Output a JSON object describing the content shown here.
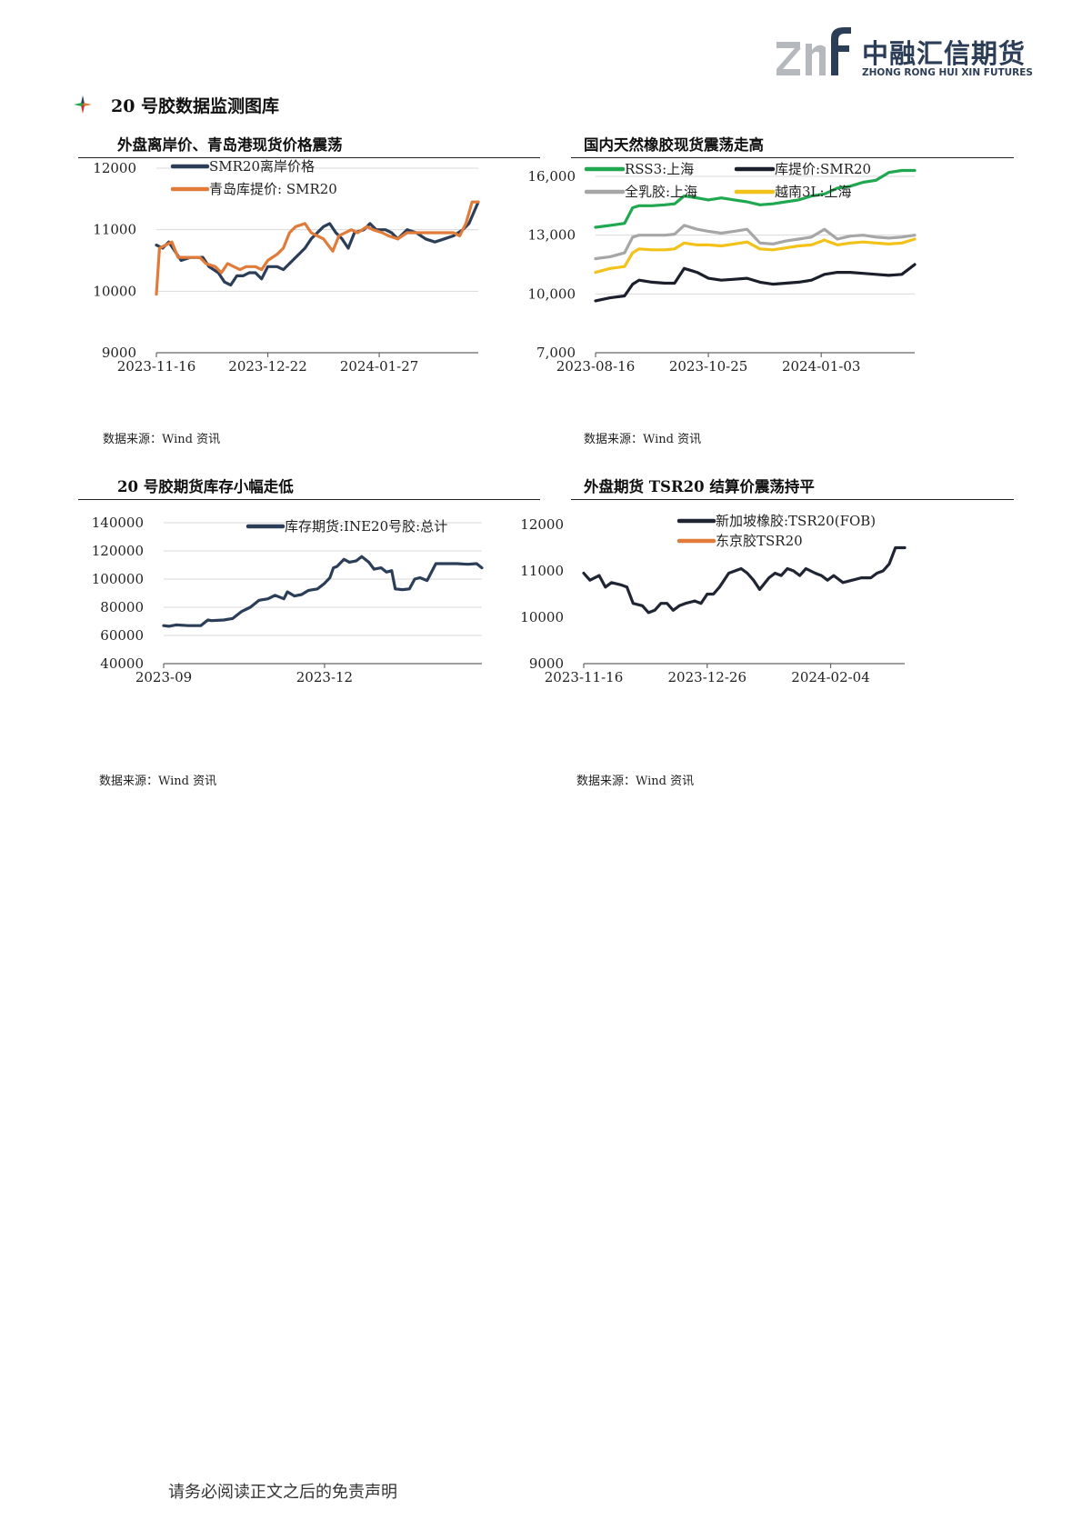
{
  "header": {
    "logo_cn": "中融汇信期货",
    "logo_en": "ZHONG RONG HUI XIN FUTURES",
    "logo_mark": "znf-logo-mark",
    "brand_color": "#2c3e57"
  },
  "section": {
    "title": "20 号胶数据监测图库",
    "bullet_icon": "compass-star-icon"
  },
  "charts": [
    {
      "title": "外盘离岸价、青岛港现货价格震荡",
      "source": "数据来源：Wind 资讯"
    },
    {
      "title": "国内天然橡胶现货震荡走高",
      "source": "数据来源：Wind 资讯"
    },
    {
      "title": "20 号胶期货库存小幅走低",
      "source": "数据来源：Wind 资讯"
    },
    {
      "title": "外盘期货 TSR20 结算价震荡持平",
      "source": "数据来源：Wind 资讯"
    }
  ],
  "footer": {
    "text": "请务必阅读正文之后的免责声明"
  },
  "chart_data": [
    {
      "type": "line",
      "ylim": [
        9000,
        12000
      ],
      "yticks": [
        "12000",
        "11000",
        "10000",
        "9000"
      ],
      "xticks": [
        "2023-11-16",
        "2023-12-22",
        "2024-01-27"
      ],
      "xrange": [
        "2023-11-16",
        "2024-02-28"
      ],
      "grid": true,
      "legend": "top-left",
      "series": [
        {
          "name": "SMR20离岸价格",
          "color": "#2c3e57",
          "x": [
            "2023-11-16",
            "2023-11-18",
            "2023-11-20",
            "2023-11-22",
            "2023-11-24",
            "2023-11-27",
            "2023-11-29",
            "2023-12-01",
            "2023-12-03",
            "2023-12-06",
            "2023-12-08",
            "2023-12-10",
            "2023-12-12",
            "2023-12-14",
            "2023-12-16",
            "2023-12-18",
            "2023-12-20",
            "2023-12-22",
            "2023-12-25",
            "2023-12-27",
            "2023-12-29",
            "2023-12-31",
            "2024-01-03",
            "2024-01-05",
            "2024-01-07",
            "2024-01-09",
            "2024-01-11",
            "2024-01-13",
            "2024-01-15",
            "2024-01-17",
            "2024-01-19",
            "2024-01-22",
            "2024-01-24",
            "2024-01-26",
            "2024-01-29",
            "2024-01-31",
            "2024-02-02",
            "2024-02-05",
            "2024-02-08",
            "2024-02-11",
            "2024-02-14",
            "2024-02-17",
            "2024-02-20",
            "2024-02-23",
            "2024-02-25",
            "2024-02-28"
          ],
          "y": [
            10750,
            10700,
            10800,
            10650,
            10500,
            10550,
            10550,
            10550,
            10400,
            10300,
            10150,
            10100,
            10250,
            10250,
            10300,
            10300,
            10200,
            10400,
            10400,
            10350,
            10450,
            10550,
            10700,
            10850,
            10950,
            11050,
            11100,
            10950,
            10850,
            10700,
            10950,
            11000,
            11100,
            11000,
            11000,
            10950,
            10850,
            11000,
            10950,
            10850,
            10800,
            10850,
            10900,
            11000,
            11100,
            11450
          ]
        },
        {
          "name": "青岛库提价: SMR20",
          "color": "#e07b39",
          "x": [
            "2023-11-16",
            "2023-11-17",
            "2023-11-19",
            "2023-11-21",
            "2023-11-23",
            "2023-11-25",
            "2023-11-28",
            "2023-11-30",
            "2023-12-02",
            "2023-12-05",
            "2023-12-07",
            "2023-12-09",
            "2023-12-11",
            "2023-12-13",
            "2023-12-15",
            "2023-12-18",
            "2023-12-20",
            "2023-12-22",
            "2023-12-25",
            "2023-12-27",
            "2023-12-29",
            "2023-12-31",
            "2024-01-03",
            "2024-01-05",
            "2024-01-07",
            "2024-01-09",
            "2024-01-12",
            "2024-01-14",
            "2024-01-16",
            "2024-01-18",
            "2024-01-20",
            "2024-01-23",
            "2024-01-25",
            "2024-01-28",
            "2024-01-30",
            "2024-02-02",
            "2024-02-05",
            "2024-02-08",
            "2024-02-11",
            "2024-02-14",
            "2024-02-17",
            "2024-02-20",
            "2024-02-22",
            "2024-02-24",
            "2024-02-26",
            "2024-02-28"
          ],
          "y": [
            9950,
            10700,
            10750,
            10800,
            10550,
            10550,
            10550,
            10550,
            10450,
            10400,
            10300,
            10450,
            10400,
            10350,
            10400,
            10400,
            10350,
            10500,
            10600,
            10700,
            10950,
            11050,
            11100,
            10950,
            10900,
            10850,
            10650,
            10900,
            10950,
            11000,
            10950,
            11050,
            11000,
            10950,
            10900,
            10850,
            10950,
            10950,
            10950,
            10950,
            10950,
            10950,
            10900,
            11100,
            11450,
            11450
          ]
        }
      ]
    },
    {
      "type": "line",
      "ylim": [
        7000,
        16000
      ],
      "yticks": [
        "16,000",
        "13,000",
        "10,000",
        "7,000"
      ],
      "xticks": [
        "2023-08-16",
        "2023-10-25",
        "2024-01-03"
      ],
      "xrange": [
        "2023-08-16",
        "2024-03-01"
      ],
      "grid": true,
      "legend": "top",
      "series": [
        {
          "name": "RSS3:上海",
          "color": "#1fa84f",
          "x": [
            "2023-08-16",
            "2023-08-25",
            "2023-09-03",
            "2023-09-08",
            "2023-09-12",
            "2023-09-20",
            "2023-09-28",
            "2023-10-04",
            "2023-10-10",
            "2023-10-18",
            "2023-10-25",
            "2023-11-02",
            "2023-11-10",
            "2023-11-18",
            "2023-11-26",
            "2023-12-04",
            "2023-12-12",
            "2023-12-20",
            "2023-12-28",
            "2024-01-05",
            "2024-01-13",
            "2024-01-21",
            "2024-01-29",
            "2024-02-06",
            "2024-02-14",
            "2024-02-22",
            "2024-03-01"
          ],
          "y": [
            13400,
            13500,
            13600,
            14400,
            14500,
            14500,
            14550,
            14600,
            15000,
            14900,
            14800,
            14900,
            14800,
            14700,
            14550,
            14600,
            14700,
            14800,
            15000,
            15100,
            15400,
            15500,
            15700,
            15800,
            16200,
            16300,
            16300
          ]
        },
        {
          "name": "库提价:SMR20",
          "color": "#1a1f2b",
          "x": [
            "2023-08-16",
            "2023-08-25",
            "2023-09-03",
            "2023-09-08",
            "2023-09-12",
            "2023-09-20",
            "2023-09-28",
            "2023-10-04",
            "2023-10-10",
            "2023-10-18",
            "2023-10-25",
            "2023-11-02",
            "2023-11-10",
            "2023-11-18",
            "2023-11-26",
            "2023-12-04",
            "2023-12-12",
            "2023-12-20",
            "2023-12-28",
            "2024-01-05",
            "2024-01-13",
            "2024-01-21",
            "2024-01-29",
            "2024-02-06",
            "2024-02-14",
            "2024-02-22",
            "2024-03-01"
          ],
          "y": [
            9650,
            9800,
            9900,
            10500,
            10700,
            10600,
            10550,
            10550,
            11300,
            11100,
            10800,
            10700,
            10750,
            10800,
            10600,
            10500,
            10550,
            10600,
            10700,
            11000,
            11100,
            11100,
            11050,
            11000,
            10950,
            11000,
            11500
          ]
        },
        {
          "name": "全乳胶:上海",
          "color": "#a6a6a6",
          "x": [
            "2023-08-16",
            "2023-08-25",
            "2023-09-03",
            "2023-09-08",
            "2023-09-12",
            "2023-09-20",
            "2023-09-28",
            "2023-10-04",
            "2023-10-10",
            "2023-10-18",
            "2023-10-25",
            "2023-11-02",
            "2023-11-10",
            "2023-11-18",
            "2023-11-26",
            "2023-12-04",
            "2023-12-12",
            "2023-12-20",
            "2023-12-28",
            "2024-01-05",
            "2024-01-13",
            "2024-01-21",
            "2024-01-29",
            "2024-02-06",
            "2024-02-14",
            "2024-02-22",
            "2024-03-01"
          ],
          "y": [
            11800,
            11900,
            12100,
            12900,
            13000,
            13000,
            13000,
            13050,
            13500,
            13300,
            13200,
            13100,
            13200,
            13300,
            12600,
            12550,
            12700,
            12800,
            12900,
            13300,
            12800,
            12950,
            13000,
            12900,
            12850,
            12900,
            13000
          ]
        },
        {
          "name": "越南3L:上海",
          "color": "#f2c21b",
          "x": [
            "2023-08-16",
            "2023-08-25",
            "2023-09-03",
            "2023-09-08",
            "2023-09-12",
            "2023-09-20",
            "2023-09-28",
            "2023-10-04",
            "2023-10-10",
            "2023-10-18",
            "2023-10-25",
            "2023-11-02",
            "2023-11-10",
            "2023-11-18",
            "2023-11-26",
            "2023-12-04",
            "2023-12-12",
            "2023-12-20",
            "2023-12-28",
            "2024-01-05",
            "2024-01-13",
            "2024-01-21",
            "2024-01-29",
            "2024-02-06",
            "2024-02-14",
            "2024-02-22",
            "2024-03-01"
          ],
          "y": [
            11100,
            11300,
            11400,
            12100,
            12300,
            12250,
            12250,
            12300,
            12600,
            12500,
            12500,
            12450,
            12550,
            12650,
            12300,
            12250,
            12350,
            12450,
            12500,
            12750,
            12500,
            12600,
            12650,
            12600,
            12550,
            12600,
            12800
          ]
        }
      ]
    },
    {
      "type": "line",
      "ylim": [
        40000,
        140000
      ],
      "yticks": [
        "140000",
        "120000",
        "100000",
        "80000",
        "60000",
        "40000"
      ],
      "xticks": [
        "2023-09",
        "2023-12"
      ],
      "xrange": [
        "2023-09-01",
        "2024-02-28"
      ],
      "grid": true,
      "legend": "top-right",
      "series": [
        {
          "name": "库存期货:INE20号胶:总计",
          "color": "#2c3e57",
          "x": [
            "2023-09-01",
            "2023-09-04",
            "2023-09-08",
            "2023-09-15",
            "2023-09-22",
            "2023-09-26",
            "2023-09-28",
            "2023-10-05",
            "2023-10-10",
            "2023-10-15",
            "2023-10-20",
            "2023-10-25",
            "2023-10-30",
            "2023-11-03",
            "2023-11-08",
            "2023-11-10",
            "2023-11-14",
            "2023-11-18",
            "2023-11-22",
            "2023-11-27",
            "2023-12-01",
            "2023-12-04",
            "2023-12-06",
            "2023-12-08",
            "2023-12-12",
            "2023-12-15",
            "2023-12-19",
            "2023-12-22",
            "2023-12-26",
            "2023-12-29",
            "2024-01-02",
            "2024-01-05",
            "2024-01-08",
            "2024-01-10",
            "2024-01-14",
            "2024-01-18",
            "2024-01-21",
            "2024-01-24",
            "2024-01-28",
            "2024-02-02",
            "2024-02-08",
            "2024-02-14",
            "2024-02-20",
            "2024-02-25",
            "2024-02-28"
          ],
          "y": [
            67000,
            66500,
            67500,
            67000,
            67000,
            71000,
            70500,
            71000,
            72000,
            77000,
            80000,
            85000,
            86000,
            88500,
            86000,
            91000,
            88000,
            89000,
            92000,
            93000,
            97000,
            101000,
            108000,
            109000,
            114000,
            112000,
            113000,
            116000,
            112000,
            107000,
            108000,
            105000,
            106000,
            93000,
            92500,
            93000,
            100000,
            101000,
            99000,
            111000,
            111000,
            111000,
            110500,
            111000,
            108000
          ]
        }
      ]
    },
    {
      "type": "line",
      "ylim": [
        9000,
        12000
      ],
      "yticks": [
        "12000",
        "11000",
        "10000",
        "9000"
      ],
      "xticks": [
        "2023-11-16",
        "2023-12-26",
        "2024-02-04"
      ],
      "xrange": [
        "2023-11-16",
        "2024-02-28"
      ],
      "grid": false,
      "legend": "top-right",
      "series": [
        {
          "name": "新加坡橡胶:TSR20(FOB)",
          "color": "#1f2533",
          "x": [
            "2023-11-16",
            "2023-11-18",
            "2023-11-21",
            "2023-11-23",
            "2023-11-25",
            "2023-11-28",
            "2023-11-30",
            "2023-12-02",
            "2023-12-05",
            "2023-12-07",
            "2023-12-09",
            "2023-12-11",
            "2023-12-13",
            "2023-12-15",
            "2023-12-17",
            "2023-12-19",
            "2023-12-22",
            "2023-12-24",
            "2023-12-26",
            "2023-12-28",
            "2023-12-30",
            "2024-01-02",
            "2024-01-04",
            "2024-01-06",
            "2024-01-08",
            "2024-01-10",
            "2024-01-12",
            "2024-01-15",
            "2024-01-17",
            "2024-01-19",
            "2024-01-21",
            "2024-01-23",
            "2024-01-25",
            "2024-01-27",
            "2024-01-30",
            "2024-02-01",
            "2024-02-03",
            "2024-02-05",
            "2024-02-08",
            "2024-02-11",
            "2024-02-14",
            "2024-02-17",
            "2024-02-19",
            "2024-02-21",
            "2024-02-23",
            "2024-02-25",
            "2024-02-28"
          ],
          "y": [
            10950,
            10800,
            10900,
            10650,
            10750,
            10700,
            10650,
            10300,
            10250,
            10100,
            10150,
            10300,
            10300,
            10150,
            10250,
            10300,
            10350,
            10300,
            10500,
            10500,
            10650,
            10950,
            11000,
            11050,
            10950,
            10800,
            10600,
            10850,
            10950,
            10900,
            11050,
            11000,
            10900,
            11050,
            10950,
            10900,
            10800,
            10900,
            10750,
            10800,
            10850,
            10850,
            10950,
            11000,
            11150,
            11500,
            11500
          ]
        },
        {
          "name": "东京胶TSR20",
          "color": "#e07b39",
          "x": [],
          "y": []
        }
      ]
    }
  ]
}
